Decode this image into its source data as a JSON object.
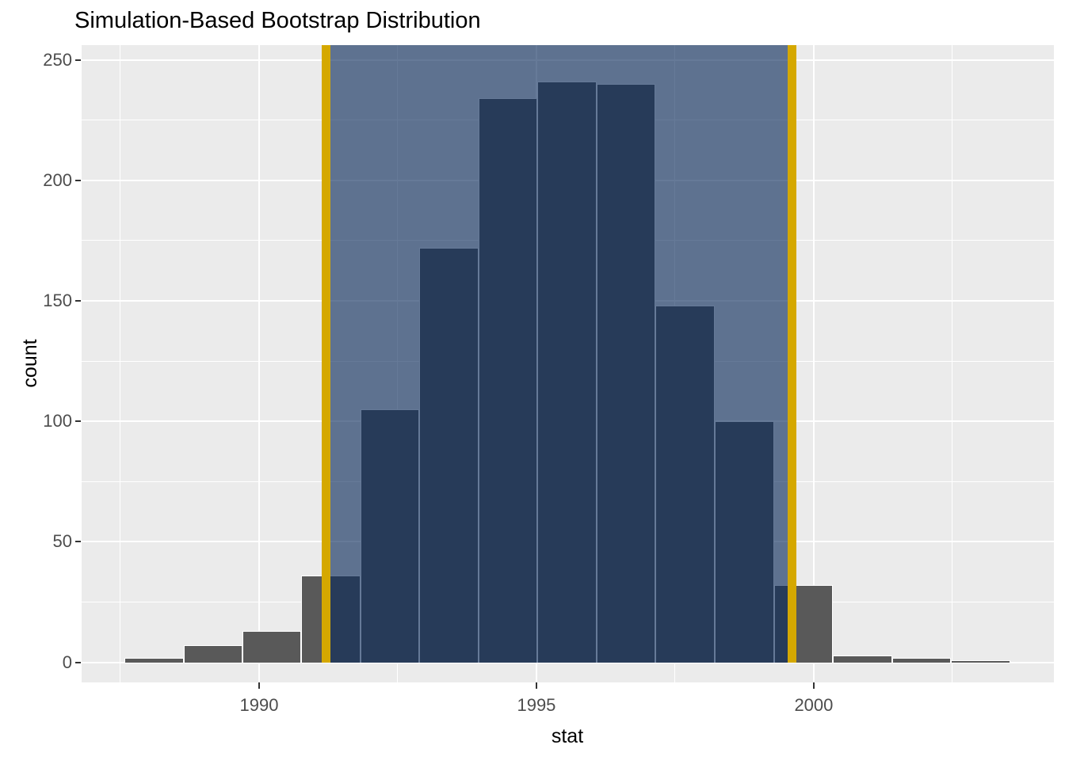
{
  "title": "Simulation-Based Bootstrap Distribution",
  "chart_data": {
    "type": "bar",
    "subtype": "histogram-with-confidence-interval-shading",
    "title": "Simulation-Based Bootstrap Distribution",
    "xlabel": "stat",
    "ylabel": "count",
    "xlim": [
      1986.8,
      2004.33
    ],
    "ylim": [
      -8.3,
      256.1
    ],
    "x_ticks": [
      1990,
      1995,
      2000
    ],
    "x_minor_ticks": [
      1987.5,
      1992.5,
      1997.5,
      2002.5
    ],
    "y_ticks": [
      0,
      50,
      100,
      150,
      200,
      250
    ],
    "y_minor_ticks": [
      25,
      75,
      125,
      175,
      225
    ],
    "grid": "on",
    "legend_position": "none",
    "bins": [
      {
        "x0": 1987.57,
        "x1": 1988.64,
        "count": 2
      },
      {
        "x0": 1988.64,
        "x1": 1989.7,
        "count": 7
      },
      {
        "x0": 1989.7,
        "x1": 1990.76,
        "count": 13
      },
      {
        "x0": 1990.76,
        "x1": 1991.83,
        "count": 36
      },
      {
        "x0": 1991.83,
        "x1": 1992.89,
        "count": 105
      },
      {
        "x0": 1992.89,
        "x1": 1993.96,
        "count": 172
      },
      {
        "x0": 1993.96,
        "x1": 1995.02,
        "count": 234
      },
      {
        "x0": 1995.02,
        "x1": 1996.09,
        "count": 241
      },
      {
        "x0": 1996.09,
        "x1": 1997.15,
        "count": 240
      },
      {
        "x0": 1997.15,
        "x1": 1998.21,
        "count": 148
      },
      {
        "x0": 1998.21,
        "x1": 1999.28,
        "count": 100
      },
      {
        "x0": 1999.28,
        "x1": 2000.34,
        "count": 32
      },
      {
        "x0": 2000.34,
        "x1": 2001.41,
        "count": 3
      },
      {
        "x0": 2001.41,
        "x1": 2002.47,
        "count": 2
      },
      {
        "x0": 2002.47,
        "x1": 2003.54,
        "count": 1
      }
    ],
    "confidence_interval": {
      "lower": 1991.21,
      "upper": 1999.61
    },
    "colors": {
      "panel_bg": "#EBEBEB",
      "grid": "#FFFFFF",
      "bar_fill": "#595959",
      "bar_border": "#FFFFFF",
      "shade_fill": "rgba(8,40,88,0.62)",
      "ci_line": "#D5A800",
      "tick_text": "#4D4D4D",
      "title_text": "#000000",
      "tick_mark": "#333333"
    }
  }
}
